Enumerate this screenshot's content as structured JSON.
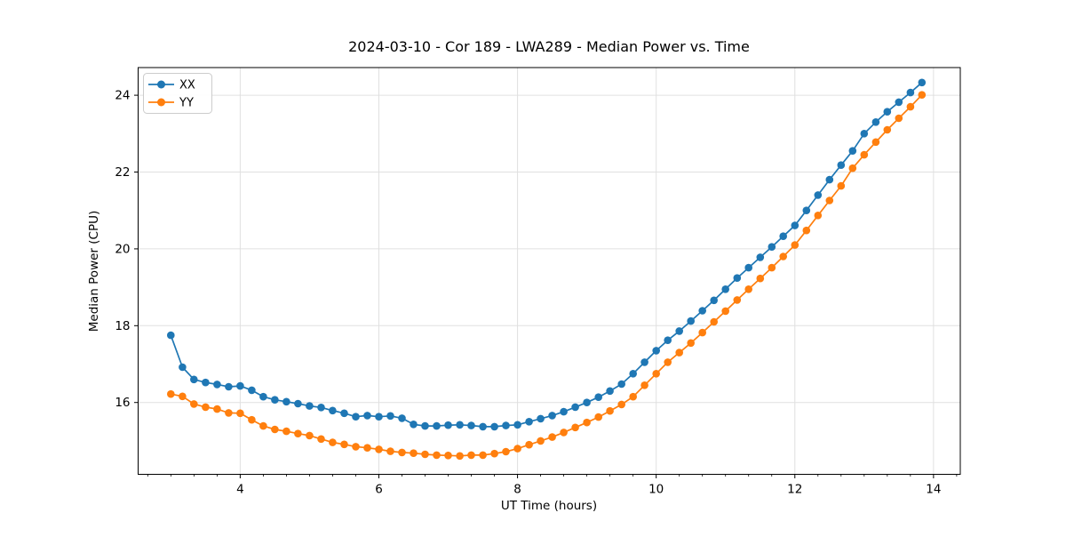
{
  "figure": {
    "title": "2024-03-10 - Cor 189 - LWA289 - Median Power vs. Time",
    "xlabel": "UT Time (hours)",
    "ylabel": "Median Power (CPU)"
  },
  "legend": {
    "position": "upper left",
    "entries": [
      {
        "label": "XX",
        "color": "#1f77b4"
      },
      {
        "label": "YY",
        "color": "#ff7f0e"
      }
    ]
  },
  "colors": {
    "background": "#ffffff",
    "grid": "#e0e0e0",
    "axis": "#000000",
    "series_xx": "#1f77b4",
    "series_yy": "#ff7f0e"
  },
  "chart_data": {
    "type": "line",
    "title": "2024-03-10 - Cor 189 - LWA289 - Median Power vs. Time",
    "xlabel": "UT Time (hours)",
    "ylabel": "Median Power (CPU)",
    "grid": true,
    "legend_position": "upper left",
    "xlim": [
      2.528,
      14.386
    ],
    "ylim": [
      14.13,
      24.72
    ],
    "x_ticks": [
      4,
      6,
      8,
      10,
      12,
      14
    ],
    "y_ticks": [
      16,
      18,
      20,
      22,
      24
    ],
    "x_minor_tick_step": 0.3333,
    "marker": "circle",
    "x": [
      3.0,
      3.167,
      3.333,
      3.5,
      3.667,
      3.833,
      4.0,
      4.167,
      4.333,
      4.5,
      4.667,
      4.833,
      5.0,
      5.167,
      5.333,
      5.5,
      5.667,
      5.833,
      6.0,
      6.167,
      6.333,
      6.5,
      6.667,
      6.833,
      7.0,
      7.167,
      7.333,
      7.5,
      7.667,
      7.833,
      8.0,
      8.167,
      8.333,
      8.5,
      8.667,
      8.833,
      9.0,
      9.167,
      9.333,
      9.5,
      9.667,
      9.833,
      10.0,
      10.167,
      10.333,
      10.5,
      10.667,
      10.833,
      11.0,
      11.167,
      11.333,
      11.5,
      11.667,
      11.833,
      12.0,
      12.167,
      12.333,
      12.5,
      12.667,
      12.833,
      13.0,
      13.167,
      13.333,
      13.5,
      13.667,
      13.833
    ],
    "series": [
      {
        "name": "XX",
        "color": "#1f77b4",
        "values": [
          17.75,
          16.92,
          16.6,
          16.52,
          16.47,
          16.41,
          16.43,
          16.32,
          16.15,
          16.07,
          16.02,
          15.97,
          15.91,
          15.87,
          15.79,
          15.72,
          15.63,
          15.66,
          15.63,
          15.65,
          15.59,
          15.43,
          15.39,
          15.39,
          15.41,
          15.42,
          15.4,
          15.37,
          15.37,
          15.4,
          15.42,
          15.5,
          15.58,
          15.66,
          15.76,
          15.88,
          16.0,
          16.14,
          16.3,
          16.48,
          16.75,
          17.05,
          17.35,
          17.62,
          17.86,
          18.12,
          18.39,
          18.66,
          18.95,
          19.24,
          19.51,
          19.78,
          20.05,
          20.33,
          20.61,
          21.0,
          21.4,
          21.8,
          22.18,
          22.55,
          23.0,
          23.3,
          23.57,
          23.82,
          24.07,
          24.33
        ]
      },
      {
        "name": "YY",
        "color": "#ff7f0e",
        "values": [
          16.22,
          16.16,
          15.96,
          15.88,
          15.83,
          15.73,
          15.72,
          15.55,
          15.39,
          15.3,
          15.25,
          15.19,
          15.14,
          15.05,
          14.96,
          14.91,
          14.85,
          14.82,
          14.78,
          14.73,
          14.7,
          14.68,
          14.65,
          14.63,
          14.62,
          14.61,
          14.63,
          14.63,
          14.67,
          14.72,
          14.8,
          14.9,
          15.0,
          15.1,
          15.22,
          15.35,
          15.48,
          15.62,
          15.78,
          15.95,
          16.15,
          16.45,
          16.75,
          17.05,
          17.3,
          17.55,
          17.82,
          18.1,
          18.38,
          18.67,
          18.95,
          19.23,
          19.51,
          19.8,
          20.1,
          20.48,
          20.87,
          21.26,
          21.64,
          22.1,
          22.45,
          22.78,
          23.1,
          23.4,
          23.7,
          24.01
        ]
      }
    ]
  }
}
